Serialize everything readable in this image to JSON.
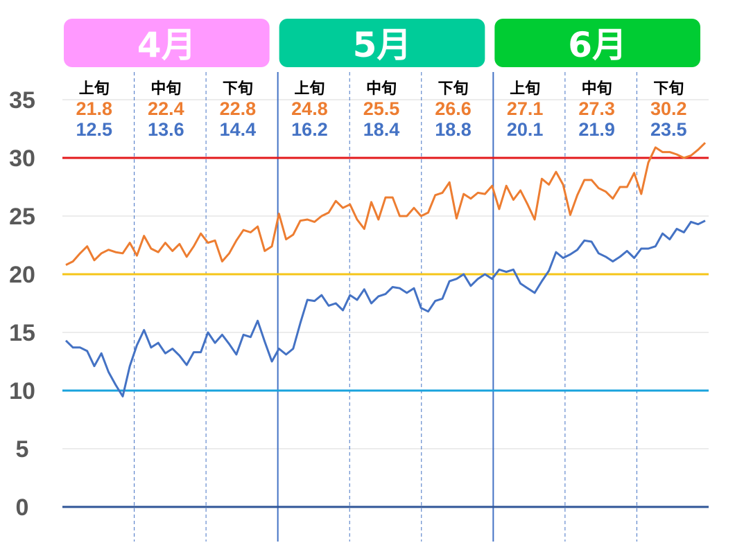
{
  "chart_data": {
    "type": "line",
    "ylim": [
      0,
      35
    ],
    "yticks": [
      0,
      5,
      10,
      15,
      20,
      25,
      30,
      35
    ],
    "grid": true,
    "months": [
      {
        "label": "4月",
        "color": "#ff99ff"
      },
      {
        "label": "5月",
        "color": "#00cc99"
      },
      {
        "label": "6月",
        "color": "#00cc33"
      }
    ],
    "periods": [
      {
        "label": "上旬",
        "high": "21.8",
        "low": "12.5"
      },
      {
        "label": "中旬",
        "high": "22.4",
        "low": "13.6"
      },
      {
        "label": "下旬",
        "high": "22.8",
        "low": "14.4"
      },
      {
        "label": "上旬",
        "high": "24.8",
        "low": "16.2"
      },
      {
        "label": "中旬",
        "high": "25.5",
        "low": "18.4"
      },
      {
        "label": "下旬",
        "high": "26.6",
        "low": "18.8"
      },
      {
        "label": "上旬",
        "high": "27.1",
        "low": "20.1"
      },
      {
        "label": "中旬",
        "high": "27.3",
        "low": "21.9"
      },
      {
        "label": "下旬",
        "high": "30.2",
        "low": "23.5"
      }
    ],
    "reference_lines": [
      {
        "value": 30,
        "color": "#e31a1c"
      },
      {
        "value": 20,
        "color": "#f5c518"
      },
      {
        "value": 10,
        "color": "#1aa3dd"
      },
      {
        "value": 0,
        "color": "#2f5597"
      }
    ],
    "series": [
      {
        "color": "#ed7d31",
        "values": [
          20.8,
          21.1,
          21.8,
          22.4,
          21.2,
          21.8,
          22.1,
          21.9,
          21.8,
          22.7,
          21.6,
          23.3,
          22.2,
          21.9,
          22.7,
          22.0,
          22.6,
          21.5,
          22.4,
          23.5,
          22.7,
          22.9,
          21.1,
          21.8,
          22.9,
          23.8,
          23.6,
          24.1,
          22.0,
          22.4,
          25.2,
          23.0,
          23.4,
          24.6,
          24.7,
          24.5,
          25.0,
          25.3,
          26.3,
          25.7,
          26.0,
          24.7,
          23.9,
          26.2,
          24.7,
          26.6,
          26.6,
          25.0,
          25.0,
          25.7,
          25.0,
          25.3,
          26.8,
          27.0,
          27.9,
          24.8,
          26.9,
          26.5,
          27.0,
          26.9,
          27.6,
          25.6,
          27.6,
          26.4,
          27.2,
          26.0,
          24.7,
          28.2,
          27.7,
          28.8,
          27.7,
          25.1,
          26.8,
          28.1,
          28.1,
          27.4,
          27.1,
          26.5,
          27.5,
          27.5,
          28.7,
          26.9,
          29.6,
          30.9,
          30.5,
          30.5,
          30.3,
          30.0,
          30.2,
          30.7,
          31.3
        ]
      },
      {
        "color": "#4472c4",
        "values": [
          14.3,
          13.7,
          13.7,
          13.4,
          12.1,
          13.2,
          11.6,
          10.5,
          9.5,
          12.1,
          13.9,
          15.2,
          13.7,
          14.1,
          13.2,
          13.6,
          13.0,
          12.2,
          13.3,
          13.3,
          15.0,
          14.1,
          14.8,
          14.0,
          13.1,
          14.8,
          14.6,
          16.0,
          14.2,
          12.5,
          13.6,
          13.1,
          13.6,
          15.8,
          17.8,
          17.7,
          18.2,
          17.3,
          17.5,
          16.9,
          18.2,
          17.8,
          18.7,
          17.5,
          18.1,
          18.3,
          18.9,
          18.8,
          18.4,
          18.8,
          17.1,
          16.8,
          17.7,
          17.9,
          19.4,
          19.6,
          20.0,
          19.0,
          19.6,
          20.0,
          19.6,
          20.4,
          20.2,
          20.4,
          19.2,
          18.8,
          18.4,
          19.4,
          20.3,
          21.9,
          21.4,
          21.7,
          22.1,
          22.9,
          22.8,
          21.8,
          21.5,
          21.1,
          21.5,
          22.0,
          21.4,
          22.2,
          22.2,
          22.4,
          23.5,
          23.0,
          23.9,
          23.6,
          24.5,
          24.3,
          24.6
        ]
      }
    ]
  }
}
